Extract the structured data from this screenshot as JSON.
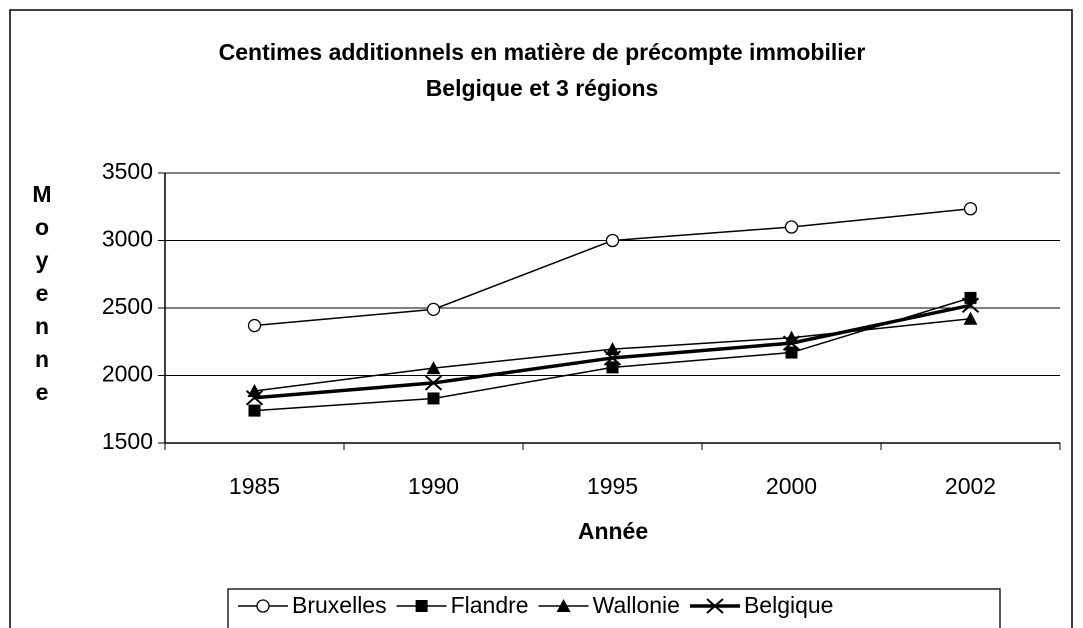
{
  "chart_data": {
    "type": "line",
    "title": "Centimes additionnels en matière de précompte immobilier",
    "subtitle": "Belgique et 3 régions",
    "x_label": "Année",
    "y_label": "Moyenne",
    "categories": [
      "1985",
      "1990",
      "1995",
      "2000",
      "2002"
    ],
    "series": [
      {
        "name": "Bruxelles",
        "color": "#000000",
        "marker": "circle",
        "values": [
          2370,
          2490,
          3000,
          3100,
          3235
        ]
      },
      {
        "name": "Flandre",
        "color": "#000000",
        "marker": "square",
        "values": [
          1740,
          1830,
          2060,
          2170,
          2575
        ]
      },
      {
        "name": "Wallonie",
        "color": "#000000",
        "marker": "triangle",
        "values": [
          1885,
          2055,
          2195,
          2280,
          2420
        ]
      },
      {
        "name": "Belgique",
        "color": "#000000",
        "marker": "x",
        "values": [
          1835,
          1945,
          2130,
          2240,
          2520
        ]
      }
    ],
    "ylim": [
      1500,
      3500
    ],
    "yticks": [
      1500,
      2000,
      2500,
      3000,
      3500
    ],
    "grid": true,
    "legend": "bottom"
  }
}
